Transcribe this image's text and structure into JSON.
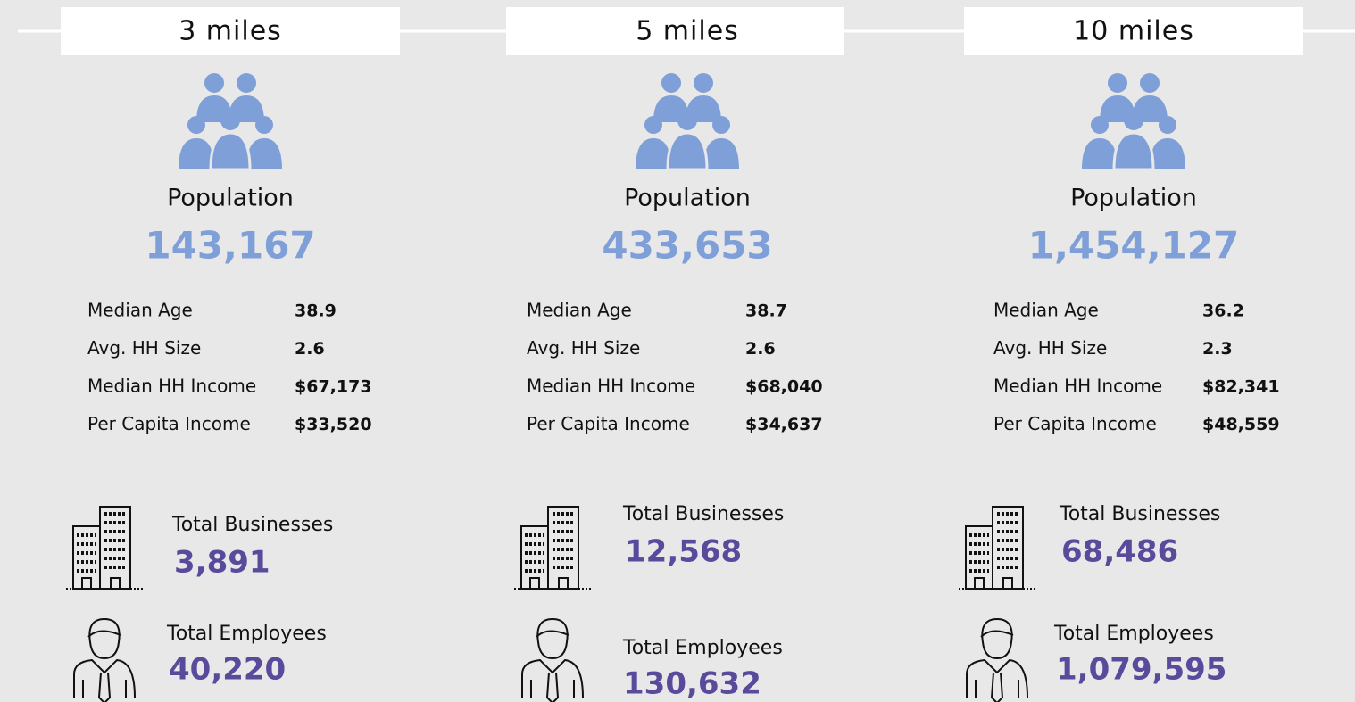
{
  "columns": [
    {
      "radius": "3 miles",
      "population_label": "Population",
      "population": "143,167",
      "stats": [
        {
          "label": "Median Age",
          "value": "38.9"
        },
        {
          "label": "Avg. HH Size",
          "value": "2.6"
        },
        {
          "label": "Median HH Income",
          "value": "$67,173"
        },
        {
          "label": "Per Capita Income",
          "value": "$33,520"
        }
      ],
      "businesses_label": "Total Businesses",
      "businesses": "3,891",
      "employees_label": "Total Employees",
      "employees": "40,220"
    },
    {
      "radius": "5 miles",
      "population_label": "Population",
      "population": "433,653",
      "stats": [
        {
          "label": "Median Age",
          "value": "38.7"
        },
        {
          "label": "Avg. HH Size",
          "value": "2.6"
        },
        {
          "label": "Median HH Income",
          "value": "$68,040"
        },
        {
          "label": "Per Capita Income",
          "value": "$34,637"
        }
      ],
      "businesses_label": "Total Businesses",
      "businesses": "12,568",
      "employees_label": "Total Employees",
      "employees": "130,632"
    },
    {
      "radius": "10 miles",
      "population_label": "Population",
      "population": "1,454,127",
      "stats": [
        {
          "label": "Median Age",
          "value": "36.2"
        },
        {
          "label": "Avg. HH Size",
          "value": "2.3"
        },
        {
          "label": "Median HH Income",
          "value": "$82,341"
        },
        {
          "label": "Per Capita Income",
          "value": "$48,559"
        }
      ],
      "businesses_label": "Total Businesses",
      "businesses": "68,486",
      "employees_label": "Total Employees",
      "employees": "1,079,595"
    }
  ]
}
